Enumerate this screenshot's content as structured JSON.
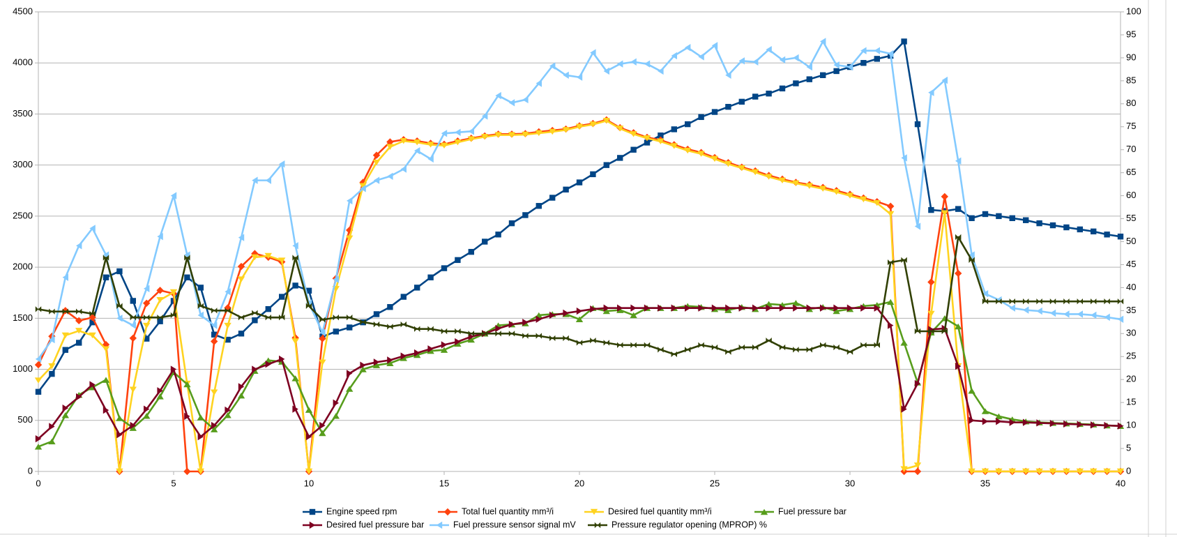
{
  "chart_data": {
    "type": "line",
    "x": [
      0,
      0.5,
      1,
      1.5,
      2,
      2.5,
      3,
      3.5,
      4,
      4.5,
      5,
      5.5,
      6,
      6.5,
      7,
      7.5,
      8,
      8.5,
      9,
      9.5,
      10,
      10.5,
      11,
      11.5,
      12,
      12.5,
      13,
      13.5,
      14,
      14.5,
      15,
      15.5,
      16,
      16.5,
      17,
      17.5,
      18,
      18.5,
      19,
      19.5,
      20,
      20.5,
      21,
      21.5,
      22,
      22.5,
      23,
      23.5,
      24,
      24.5,
      25,
      25.5,
      26,
      26.5,
      27,
      27.5,
      28,
      28.5,
      29,
      29.5,
      30,
      30.5,
      31,
      31.5,
      32,
      32.5,
      33,
      33.5,
      34,
      34.5,
      35,
      35.5,
      36,
      36.5,
      37,
      37.5,
      38,
      38.5,
      39,
      39.5,
      40
    ],
    "xlim": [
      0,
      40
    ],
    "xticks": [
      0,
      5,
      10,
      15,
      20,
      25,
      30,
      35,
      40
    ],
    "ylim": [
      0,
      4500
    ],
    "yticks": [
      0,
      500,
      1000,
      1500,
      2000,
      2500,
      3000,
      3500,
      4000,
      4500
    ],
    "y2lim": [
      0,
      100
    ],
    "y2ticks": [
      0,
      5,
      10,
      15,
      20,
      25,
      30,
      35,
      40,
      45,
      50,
      55,
      60,
      65,
      70,
      75,
      80,
      85,
      90,
      95,
      100
    ],
    "grid": true,
    "series": [
      {
        "name": "Engine speed rpm",
        "color": "#004586",
        "values": [
          780,
          955,
          1190,
          1260,
          1460,
          1900,
          1960,
          1670,
          1300,
          1470,
          1670,
          1900,
          1800,
          1340,
          1290,
          1350,
          1480,
          1590,
          1710,
          1820,
          1770,
          1320,
          1370,
          1410,
          1460,
          1540,
          1610,
          1710,
          1800,
          1900,
          1990,
          2070,
          2150,
          2250,
          2320,
          2430,
          2510,
          2600,
          2680,
          2760,
          2830,
          2910,
          3000,
          3070,
          3150,
          3220,
          3290,
          3350,
          3400,
          3470,
          3520,
          3570,
          3620,
          3670,
          3700,
          3750,
          3800,
          3840,
          3880,
          3920,
          3960,
          4000,
          4040,
          4070,
          4210,
          3400,
          2560,
          2550,
          2570,
          2480,
          2520,
          2500,
          2480,
          2460,
          2430,
          2410,
          2390,
          2370,
          2350,
          2320,
          2300
        ]
      },
      {
        "name": "Total fuel quantity mm³/i",
        "color": "#ff420e",
        "axis": "y2",
        "values": [
          23.2,
          29.4,
          35,
          32.8,
          33.5,
          27.6,
          0,
          29,
          36.6,
          39.4,
          38.7,
          0,
          0,
          28.3,
          35.6,
          44.6,
          47.4,
          46.6,
          45.6,
          29.1,
          0,
          28.9,
          42,
          52.5,
          62.9,
          68.8,
          71.7,
          72.2,
          71.9,
          71.4,
          71.2,
          71.9,
          72.5,
          73,
          73.4,
          73.4,
          73.5,
          73.9,
          74.2,
          74.5,
          75.2,
          75.7,
          76.5,
          74.8,
          73.7,
          72.7,
          72.1,
          71.1,
          70.1,
          69.4,
          68.3,
          67.2,
          66.2,
          65.4,
          64.4,
          63.6,
          62.9,
          62.4,
          61.8,
          61.1,
          60.3,
          59.5,
          58.7,
          57.7,
          0,
          0,
          41.2,
          59.8,
          43.1,
          0,
          0,
          0,
          0,
          0,
          0,
          0,
          0,
          0,
          0,
          0,
          0
        ]
      },
      {
        "name": "Desired fuel quantity mm³/i",
        "color": "#ffd320",
        "axis": "y2",
        "values": [
          19.8,
          22.9,
          29.6,
          30.6,
          29.6,
          26.6,
          0,
          17.8,
          31.7,
          37.3,
          39,
          19.1,
          0,
          17.2,
          31.7,
          41.8,
          46.6,
          46.9,
          45.9,
          28.3,
          0,
          23.7,
          39.7,
          50.7,
          62.1,
          67.2,
          70.6,
          71.9,
          71.6,
          71.1,
          70.9,
          71.6,
          72.3,
          72.8,
          73.2,
          73.2,
          73.3,
          73.6,
          73.9,
          74.3,
          75,
          75.5,
          76.3,
          74.6,
          73.4,
          72.5,
          71.8,
          70.8,
          69.8,
          69.1,
          68,
          66.9,
          66,
          65.1,
          64.1,
          63.3,
          62.7,
          62.1,
          61.5,
          60.8,
          60,
          59.2,
          58.4,
          56,
          0.5,
          1.3,
          34.3,
          56.2,
          22.9,
          0,
          0,
          0,
          0,
          0,
          0,
          0,
          0,
          0,
          0,
          0,
          0
        ]
      },
      {
        "name": "Fuel pressure bar",
        "color": "#579d1c",
        "values": [
          243,
          294,
          551,
          750,
          824,
          897,
          522,
          426,
          544,
          735,
          971,
          853,
          529,
          412,
          551,
          743,
          985,
          1088,
          1074,
          912,
          603,
          375,
          544,
          809,
          1000,
          1040,
          1060,
          1110,
          1140,
          1180,
          1190,
          1250,
          1290,
          1350,
          1430,
          1440,
          1450,
          1530,
          1540,
          1540,
          1490,
          1600,
          1570,
          1580,
          1530,
          1600,
          1600,
          1600,
          1620,
          1610,
          1590,
          1580,
          1610,
          1590,
          1640,
          1630,
          1650,
          1590,
          1610,
          1570,
          1590,
          1620,
          1630,
          1660,
          1260,
          870,
          1360,
          1500,
          1420,
          790,
          590,
          540,
          510,
          490,
          480,
          475,
          470,
          465,
          460,
          450,
          445
        ]
      },
      {
        "name": "Desired fuel pressure bar",
        "color": "#7e0021",
        "values": [
          320,
          440,
          620,
          730,
          850,
          600,
          360,
          450,
          610,
          790,
          1000,
          540,
          340,
          450,
          600,
          830,
          1000,
          1050,
          1100,
          610,
          340,
          450,
          670,
          960,
          1040,
          1070,
          1090,
          1130,
          1160,
          1200,
          1240,
          1270,
          1320,
          1350,
          1400,
          1440,
          1460,
          1490,
          1530,
          1550,
          1570,
          1590,
          1600,
          1600,
          1600,
          1600,
          1600,
          1600,
          1600,
          1600,
          1600,
          1600,
          1600,
          1600,
          1600,
          1600,
          1600,
          1600,
          1600,
          1600,
          1600,
          1600,
          1600,
          1430,
          610,
          860,
          1390,
          1400,
          1030,
          500,
          490,
          490,
          480,
          480,
          475,
          470,
          465,
          460,
          455,
          450,
          445
        ]
      },
      {
        "name": "Fuel pressure sensor signal mV",
        "color": "#83caff",
        "values": [
          1100,
          1290,
          1900,
          2210,
          2380,
          2120,
          1500,
          1430,
          1790,
          2300,
          2700,
          2120,
          1530,
          1430,
          1760,
          2290,
          2850,
          2850,
          3010,
          2210,
          1650,
          1360,
          1880,
          2650,
          2770,
          2850,
          2890,
          2960,
          3140,
          3060,
          3310,
          3320,
          3330,
          3480,
          3680,
          3610,
          3640,
          3800,
          3970,
          3880,
          3860,
          4100,
          3920,
          3990,
          4010,
          3990,
          3920,
          4070,
          4150,
          4060,
          4170,
          3880,
          4020,
          4010,
          4130,
          4030,
          4050,
          3960,
          4210,
          3980,
          3960,
          4120,
          4120,
          4090,
          3070,
          2400,
          3710,
          3830,
          3040,
          2120,
          1740,
          1680,
          1600,
          1580,
          1570,
          1550,
          1540,
          1540,
          1530,
          1510,
          1490
        ]
      },
      {
        "name": "Pressure regulator opening (MPROP) %",
        "color": "#314004",
        "axis": "y2",
        "values": [
          35.3,
          34.8,
          34.8,
          34.8,
          34.3,
          46.5,
          36,
          33.5,
          33.5,
          33.5,
          34,
          46.5,
          36,
          35,
          35,
          33.5,
          34.5,
          33.5,
          33.5,
          46.5,
          36,
          33,
          33.5,
          33.5,
          32.5,
          32,
          31.5,
          32,
          31,
          31,
          30.5,
          30.5,
          30,
          30,
          30,
          30,
          29.5,
          29.5,
          29,
          29,
          28,
          28.5,
          28,
          27.5,
          27.5,
          27.5,
          26.5,
          25.5,
          26.5,
          27.5,
          27,
          26,
          27,
          27,
          28.5,
          27,
          26.5,
          26.5,
          27.5,
          27,
          26,
          27.5,
          27.5,
          45.5,
          46,
          30.5,
          30.5,
          30.5,
          51,
          46,
          37,
          37,
          37,
          37,
          37,
          37,
          37,
          37,
          37,
          37,
          37
        ]
      }
    ]
  }
}
